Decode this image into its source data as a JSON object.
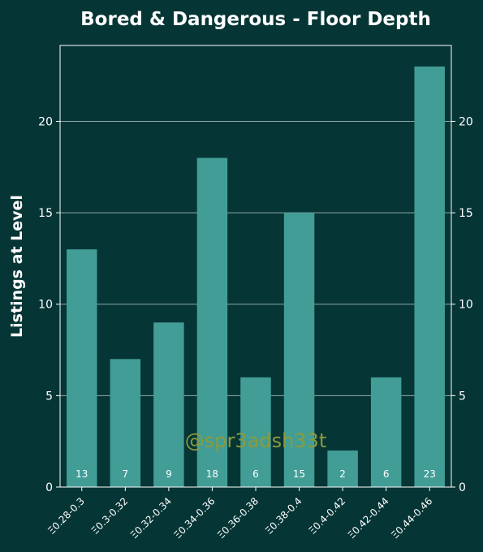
{
  "chart_data": {
    "type": "bar",
    "title": "Bored & Dangerous - Floor Depth",
    "xlabel": "",
    "ylabel": "Listings at Level",
    "categories": [
      "Ξ0.28-0.3",
      "Ξ0.3-0.32",
      "Ξ0.32-0.34",
      "Ξ0.34-0.36",
      "Ξ0.36-0.38",
      "Ξ0.38-0.4",
      "Ξ0.4-0.42",
      "Ξ0.42-0.44",
      "Ξ0.44-0.46"
    ],
    "values": [
      13,
      7,
      9,
      18,
      6,
      15,
      2,
      6,
      23
    ],
    "ylim": [
      0,
      24.15
    ],
    "yticks": [
      0,
      5,
      10,
      15,
      20
    ],
    "grid": true,
    "watermark": "@spr3adsh33t",
    "colors": {
      "background": "#063535",
      "bar": "#419d96",
      "text": "#ffffff",
      "grid": "#8fa8a8",
      "watermark": "#8d9a3c"
    }
  }
}
